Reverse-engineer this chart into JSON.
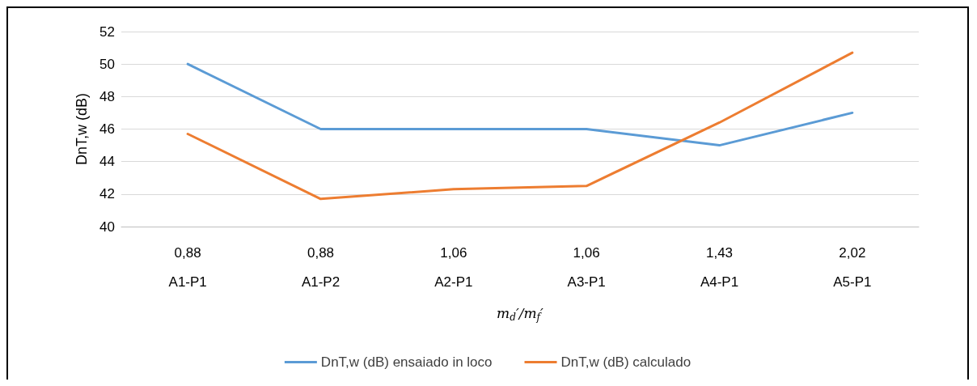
{
  "chart_data": {
    "type": "line",
    "xlabel": "m$_{d}$′/m$_{f}$′",
    "ylabel": "DnT,w (dB)",
    "categories": [
      "0,88\nA1-P1",
      "0,88\nA1-P2",
      "1,06\nA2-P1",
      "1,06\nA3-P1",
      "1,43\nA4-P1",
      "2,02\nA5-P1"
    ],
    "series": [
      {
        "name": "DnT,w (dB) ensaiado in loco",
        "color": "#5b9bd5",
        "values": [
          50,
          46,
          46,
          46,
          45,
          47
        ]
      },
      {
        "name": "DnT,w (dB) calculado",
        "color": "#ed7d31",
        "values": [
          45.7,
          41.7,
          42.3,
          42.5,
          46.4,
          50.7
        ]
      }
    ],
    "ylim": [
      40,
      52
    ],
    "yticks": [
      40,
      42,
      44,
      46,
      48,
      50,
      52
    ],
    "grid": "y",
    "legend": "bottom",
    "marker": "none",
    "line_style": "solid"
  }
}
